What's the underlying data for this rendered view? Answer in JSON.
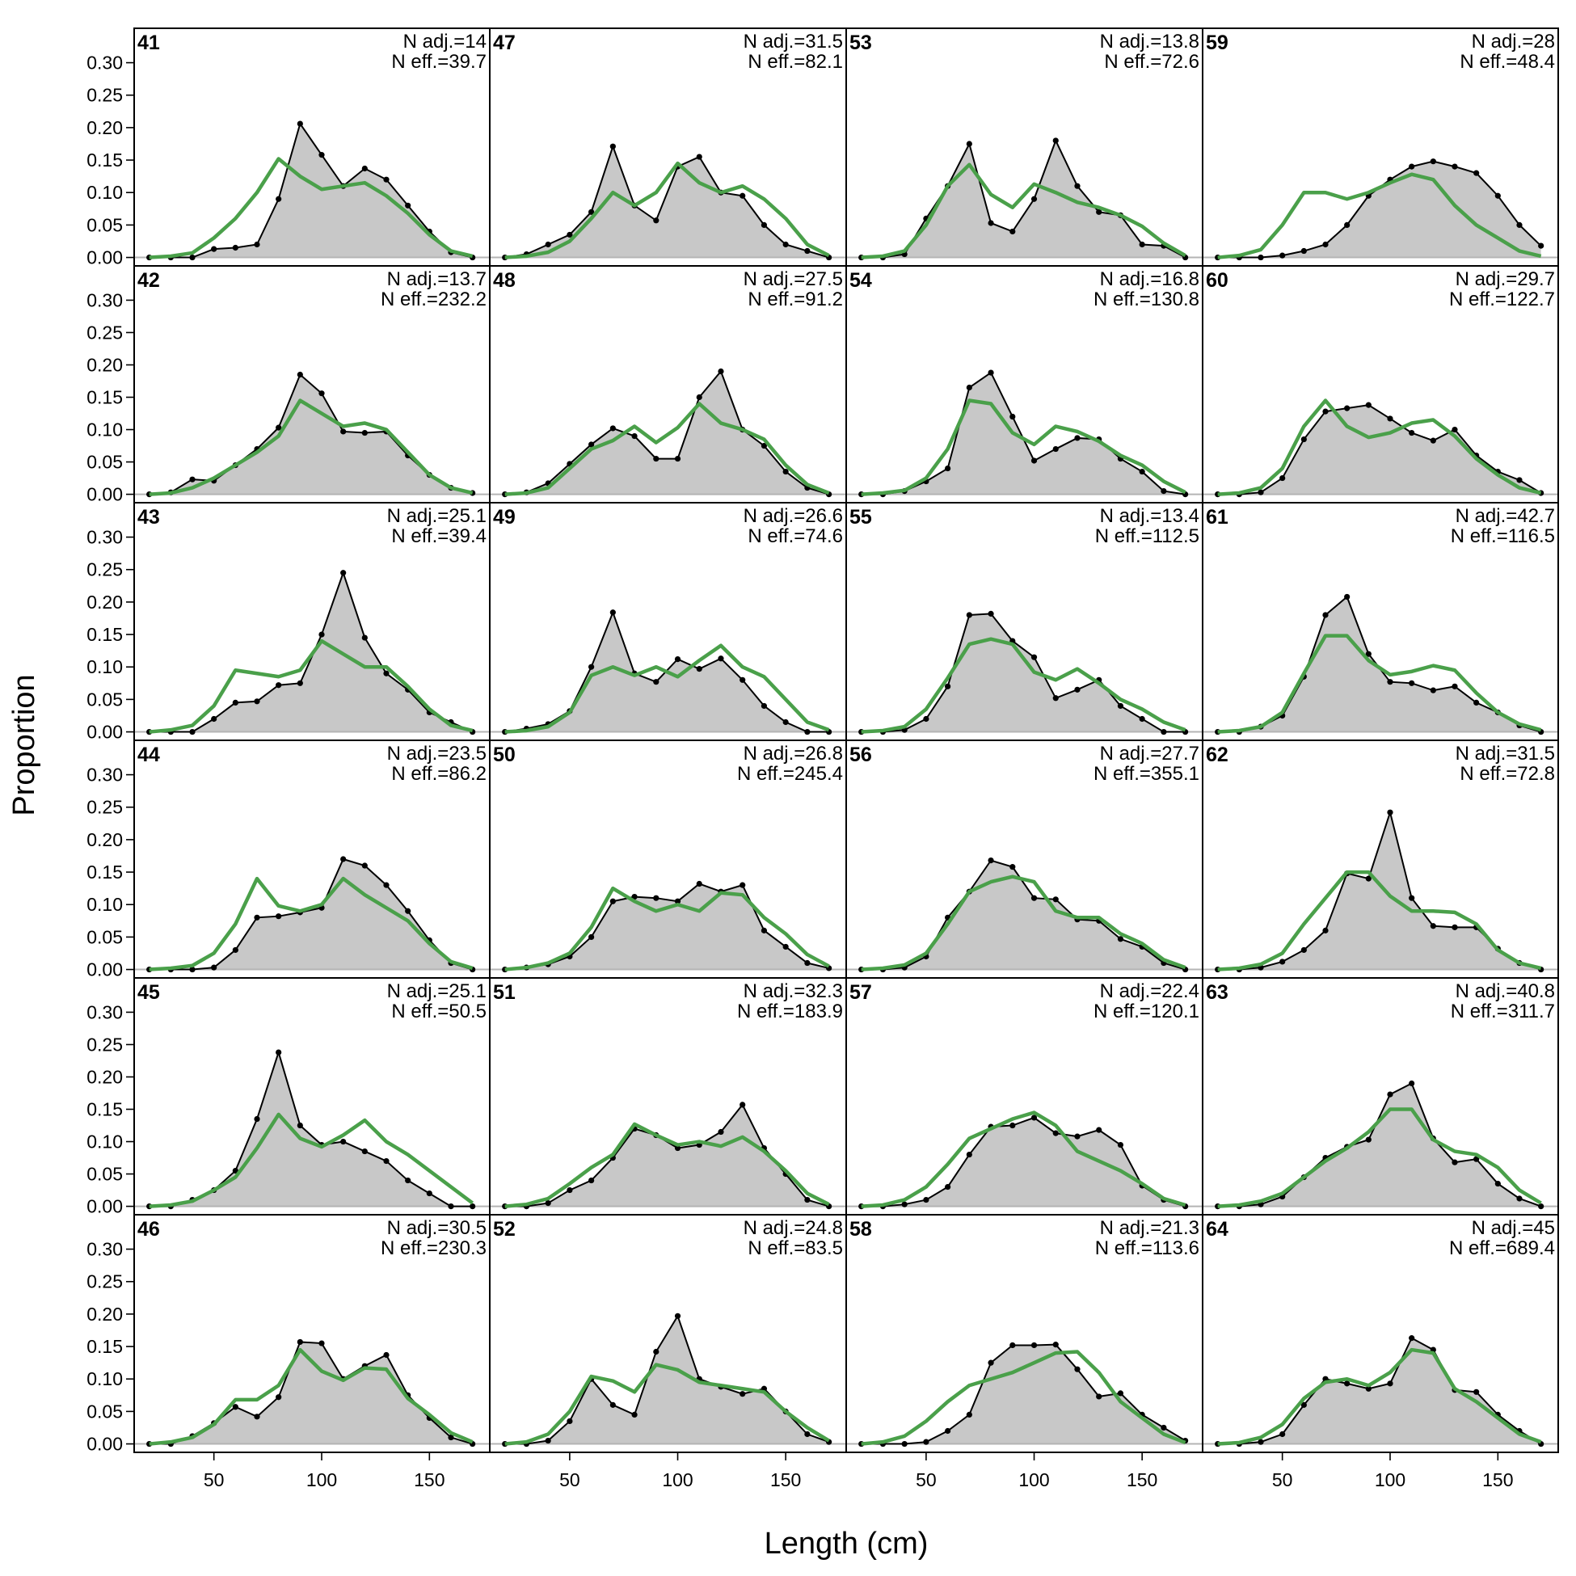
{
  "chart_data": {
    "type": "area",
    "xlabel": "Length (cm)",
    "ylabel": "Proportion",
    "xlim": [
      13,
      178
    ],
    "ylim": [
      -0.013,
      0.353
    ],
    "xticks": [
      50,
      100,
      150
    ],
    "yticks": [
      0.0,
      0.05,
      0.1,
      0.15,
      0.2,
      0.25,
      0.3
    ],
    "ytick_labels": [
      "0.00",
      "0.05",
      "0.10",
      "0.15",
      "0.20",
      "0.25",
      "0.30"
    ],
    "grid": false,
    "colors": {
      "observed_fill": "#c8c8c8",
      "observed_line": "#000000",
      "expected_line": "#4aa04a",
      "baseline": "#b4b4b4"
    },
    "x": [
      20,
      30,
      40,
      50,
      60,
      70,
      80,
      90,
      100,
      110,
      120,
      130,
      140,
      150,
      160,
      170
    ],
    "panels": [
      {
        "id": "41",
        "n_adj": "N adj.=14",
        "n_eff": "N eff.=39.7",
        "observed": [
          0,
          0,
          0,
          0.013,
          0.015,
          0.02,
          0.09,
          0.206,
          0.158,
          0.11,
          0.137,
          0.12,
          0.08,
          0.04,
          0.008,
          0
        ],
        "expected": [
          0,
          0.002,
          0.007,
          0.03,
          0.06,
          0.1,
          0.152,
          0.125,
          0.105,
          0.11,
          0.115,
          0.095,
          0.068,
          0.035,
          0.01,
          0.002
        ]
      },
      {
        "id": "42",
        "n_adj": "N adj.=13.7",
        "n_eff": "N eff.=232.2",
        "observed": [
          0,
          0.003,
          0.023,
          0.021,
          0.045,
          0.07,
          0.103,
          0.185,
          0.156,
          0.097,
          0.095,
          0.097,
          0.06,
          0.03,
          0.01,
          0.002
        ],
        "expected": [
          0,
          0.002,
          0.01,
          0.025,
          0.045,
          0.065,
          0.09,
          0.145,
          0.125,
          0.105,
          0.11,
          0.1,
          0.065,
          0.03,
          0.01,
          0.002
        ]
      },
      {
        "id": "43",
        "n_adj": "N adj.=25.1",
        "n_eff": "N eff.=39.4",
        "observed": [
          0,
          0,
          0,
          0.02,
          0.045,
          0.047,
          0.072,
          0.075,
          0.15,
          0.245,
          0.145,
          0.09,
          0.065,
          0.03,
          0.015,
          0
        ],
        "expected": [
          0,
          0.003,
          0.01,
          0.04,
          0.095,
          0.09,
          0.085,
          0.095,
          0.14,
          0.12,
          0.1,
          0.1,
          0.07,
          0.035,
          0.01,
          0.002
        ]
      },
      {
        "id": "44",
        "n_adj": "N adj.=23.5",
        "n_eff": "N eff.=86.2",
        "observed": [
          0,
          0,
          0,
          0.003,
          0.03,
          0.08,
          0.082,
          0.088,
          0.095,
          0.17,
          0.16,
          0.13,
          0.09,
          0.045,
          0.01,
          0
        ],
        "expected": [
          0,
          0.002,
          0.006,
          0.025,
          0.07,
          0.14,
          0.098,
          0.09,
          0.1,
          0.14,
          0.115,
          0.095,
          0.075,
          0.04,
          0.012,
          0.002
        ]
      },
      {
        "id": "45",
        "n_adj": "N adj.=25.1",
        "n_eff": "N eff.=50.5",
        "observed": [
          0,
          0,
          0.01,
          0.025,
          0.055,
          0.135,
          0.238,
          0.125,
          0.095,
          0.1,
          0.085,
          0.07,
          0.04,
          0.02,
          0,
          0
        ],
        "expected": [
          0,
          0.002,
          0.008,
          0.025,
          0.045,
          0.09,
          0.142,
          0.105,
          0.092,
          0.11,
          0.133,
          0.1,
          0.08,
          0.055,
          0.03,
          0.005
        ]
      },
      {
        "id": "46",
        "n_adj": "N adj.=30.5",
        "n_eff": "N eff.=230.3",
        "observed": [
          0,
          0,
          0.012,
          0.032,
          0.057,
          0.042,
          0.072,
          0.157,
          0.155,
          0.1,
          0.12,
          0.137,
          0.075,
          0.04,
          0.01,
          0
        ],
        "expected": [
          0,
          0.003,
          0.01,
          0.03,
          0.068,
          0.068,
          0.09,
          0.145,
          0.112,
          0.098,
          0.117,
          0.115,
          0.07,
          0.045,
          0.017,
          0.003
        ]
      },
      {
        "id": "47",
        "n_adj": "N adj.=31.5",
        "n_eff": "N eff.=82.1",
        "observed": [
          0,
          0.005,
          0.02,
          0.035,
          0.07,
          0.171,
          0.08,
          0.057,
          0.14,
          0.155,
          0.1,
          0.095,
          0.05,
          0.02,
          0.01,
          0
        ],
        "expected": [
          0,
          0.002,
          0.008,
          0.025,
          0.06,
          0.1,
          0.08,
          0.1,
          0.145,
          0.115,
          0.1,
          0.11,
          0.09,
          0.06,
          0.02,
          0.003
        ]
      },
      {
        "id": "48",
        "n_adj": "N adj.=27.5",
        "n_eff": "N eff.=91.2",
        "observed": [
          0,
          0.003,
          0.017,
          0.047,
          0.077,
          0.102,
          0.09,
          0.055,
          0.055,
          0.15,
          0.19,
          0.1,
          0.075,
          0.035,
          0.01,
          0
        ],
        "expected": [
          0,
          0.002,
          0.01,
          0.04,
          0.07,
          0.083,
          0.105,
          0.08,
          0.103,
          0.14,
          0.11,
          0.1,
          0.085,
          0.045,
          0.015,
          0.002
        ]
      },
      {
        "id": "49",
        "n_adj": "N adj.=26.6",
        "n_eff": "N eff.=74.6",
        "observed": [
          0,
          0.005,
          0.012,
          0.032,
          0.1,
          0.184,
          0.09,
          0.077,
          0.112,
          0.097,
          0.113,
          0.08,
          0.04,
          0.015,
          0,
          0
        ],
        "expected": [
          0,
          0.002,
          0.008,
          0.03,
          0.087,
          0.1,
          0.087,
          0.1,
          0.085,
          0.11,
          0.133,
          0.1,
          0.085,
          0.05,
          0.015,
          0.003
        ]
      },
      {
        "id": "50",
        "n_adj": "N adj.=26.8",
        "n_eff": "N eff.=245.4",
        "observed": [
          0,
          0.003,
          0.008,
          0.02,
          0.05,
          0.105,
          0.112,
          0.11,
          0.105,
          0.132,
          0.12,
          0.13,
          0.06,
          0.035,
          0.01,
          0.002
        ],
        "expected": [
          0,
          0.003,
          0.01,
          0.025,
          0.065,
          0.125,
          0.105,
          0.09,
          0.1,
          0.09,
          0.118,
          0.115,
          0.08,
          0.055,
          0.023,
          0.005
        ]
      },
      {
        "id": "51",
        "n_adj": "N adj.=32.3",
        "n_eff": "N eff.=183.9",
        "observed": [
          0,
          0,
          0.005,
          0.025,
          0.04,
          0.075,
          0.12,
          0.11,
          0.09,
          0.095,
          0.115,
          0.157,
          0.09,
          0.05,
          0.01,
          0
        ],
        "expected": [
          0,
          0.003,
          0.012,
          0.035,
          0.06,
          0.08,
          0.127,
          0.11,
          0.095,
          0.1,
          0.093,
          0.107,
          0.085,
          0.055,
          0.02,
          0.003
        ]
      },
      {
        "id": "52",
        "n_adj": "N adj.=24.8",
        "n_eff": "N eff.=83.5",
        "observed": [
          0,
          0,
          0.005,
          0.035,
          0.1,
          0.06,
          0.045,
          0.142,
          0.197,
          0.1,
          0.088,
          0.077,
          0.085,
          0.05,
          0.015,
          0.003
        ],
        "expected": [
          0,
          0.003,
          0.015,
          0.05,
          0.104,
          0.097,
          0.08,
          0.122,
          0.114,
          0.095,
          0.09,
          0.085,
          0.08,
          0.05,
          0.025,
          0.005
        ]
      },
      {
        "id": "53",
        "n_adj": "N adj.=13.8",
        "n_eff": "N eff.=72.6",
        "observed": [
          0,
          0,
          0.005,
          0.06,
          0.11,
          0.175,
          0.053,
          0.04,
          0.09,
          0.18,
          0.11,
          0.07,
          0.065,
          0.02,
          0.018,
          0
        ],
        "expected": [
          0,
          0.002,
          0.01,
          0.05,
          0.11,
          0.143,
          0.097,
          0.077,
          0.113,
          0.1,
          0.085,
          0.077,
          0.065,
          0.048,
          0.022,
          0.003
        ]
      },
      {
        "id": "54",
        "n_adj": "N adj.=16.8",
        "n_eff": "N eff.=130.8",
        "observed": [
          0,
          0,
          0.005,
          0.02,
          0.04,
          0.165,
          0.188,
          0.12,
          0.052,
          0.07,
          0.087,
          0.085,
          0.055,
          0.035,
          0.005,
          0
        ],
        "expected": [
          0,
          0.002,
          0.006,
          0.025,
          0.07,
          0.145,
          0.14,
          0.095,
          0.077,
          0.105,
          0.097,
          0.082,
          0.06,
          0.045,
          0.02,
          0.003
        ]
      },
      {
        "id": "55",
        "n_adj": "N adj.=13.4",
        "n_eff": "N eff.=112.5",
        "observed": [
          0,
          0,
          0.003,
          0.02,
          0.07,
          0.18,
          0.182,
          0.14,
          0.115,
          0.052,
          0.065,
          0.08,
          0.04,
          0.02,
          0,
          0
        ],
        "expected": [
          0,
          0.002,
          0.008,
          0.035,
          0.083,
          0.135,
          0.143,
          0.135,
          0.092,
          0.08,
          0.097,
          0.075,
          0.05,
          0.035,
          0.015,
          0.003
        ]
      },
      {
        "id": "56",
        "n_adj": "N adj.=27.7",
        "n_eff": "N eff.=355.1",
        "observed": [
          0,
          0,
          0.003,
          0.02,
          0.08,
          0.12,
          0.168,
          0.158,
          0.11,
          0.108,
          0.077,
          0.075,
          0.047,
          0.035,
          0.01,
          0
        ],
        "expected": [
          0,
          0.002,
          0.007,
          0.025,
          0.07,
          0.12,
          0.135,
          0.143,
          0.135,
          0.09,
          0.08,
          0.08,
          0.055,
          0.04,
          0.015,
          0.003
        ]
      },
      {
        "id": "57",
        "n_adj": "N adj.=22.4",
        "n_eff": "N eff.=120.1",
        "observed": [
          0,
          0,
          0.003,
          0.01,
          0.03,
          0.08,
          0.123,
          0.125,
          0.137,
          0.113,
          0.108,
          0.118,
          0.095,
          0.032,
          0.01,
          0
        ],
        "expected": [
          0,
          0.002,
          0.01,
          0.03,
          0.065,
          0.105,
          0.12,
          0.135,
          0.145,
          0.125,
          0.085,
          0.07,
          0.055,
          0.035,
          0.012,
          0.002
        ]
      },
      {
        "id": "58",
        "n_adj": "N adj.=21.3",
        "n_eff": "N eff.=113.6",
        "observed": [
          0,
          0,
          0,
          0.003,
          0.02,
          0.045,
          0.125,
          0.152,
          0.152,
          0.153,
          0.115,
          0.073,
          0.078,
          0.045,
          0.025,
          0.005
        ],
        "expected": [
          0,
          0.003,
          0.012,
          0.035,
          0.065,
          0.09,
          0.1,
          0.11,
          0.125,
          0.14,
          0.142,
          0.11,
          0.065,
          0.04,
          0.015,
          0.002
        ]
      },
      {
        "id": "59",
        "n_adj": "N adj.=28",
        "n_eff": "N eff.=48.4",
        "observed": [
          0,
          0,
          0,
          0.003,
          0.01,
          0.02,
          0.05,
          0.095,
          0.12,
          0.14,
          0.148,
          0.14,
          0.13,
          0.095,
          0.05,
          0.018
        ],
        "expected": [
          0,
          0.003,
          0.012,
          0.05,
          0.1,
          0.1,
          0.09,
          0.1,
          0.115,
          0.128,
          0.12,
          0.08,
          0.05,
          0.03,
          0.01,
          0.002
        ]
      },
      {
        "id": "60",
        "n_adj": "N adj.=29.7",
        "n_eff": "N eff.=122.7",
        "observed": [
          0,
          0,
          0.003,
          0.025,
          0.085,
          0.128,
          0.133,
          0.138,
          0.117,
          0.095,
          0.083,
          0.1,
          0.06,
          0.035,
          0.022,
          0.002
        ],
        "expected": [
          0,
          0.002,
          0.01,
          0.04,
          0.105,
          0.145,
          0.105,
          0.088,
          0.095,
          0.11,
          0.115,
          0.09,
          0.055,
          0.03,
          0.01,
          0.002
        ]
      },
      {
        "id": "61",
        "n_adj": "N adj.=42.7",
        "n_eff": "N eff.=116.5",
        "observed": [
          0,
          0,
          0.008,
          0.025,
          0.085,
          0.18,
          0.208,
          0.12,
          0.077,
          0.075,
          0.064,
          0.07,
          0.045,
          0.03,
          0.01,
          0
        ],
        "expected": [
          0,
          0.002,
          0.008,
          0.03,
          0.09,
          0.148,
          0.148,
          0.11,
          0.088,
          0.093,
          0.102,
          0.095,
          0.06,
          0.03,
          0.012,
          0.003
        ]
      },
      {
        "id": "62",
        "n_adj": "N adj.=31.5",
        "n_eff": "N eff.=72.8",
        "observed": [
          0,
          0,
          0.003,
          0.012,
          0.03,
          0.06,
          0.148,
          0.14,
          0.242,
          0.11,
          0.067,
          0.065,
          0.065,
          0.032,
          0.01,
          0
        ],
        "expected": [
          0,
          0.002,
          0.008,
          0.025,
          0.07,
          0.11,
          0.15,
          0.15,
          0.113,
          0.09,
          0.09,
          0.088,
          0.07,
          0.03,
          0.01,
          0.002
        ]
      },
      {
        "id": "63",
        "n_adj": "N adj.=40.8",
        "n_eff": "N eff.=311.7",
        "observed": [
          0,
          0,
          0.003,
          0.015,
          0.045,
          0.075,
          0.092,
          0.103,
          0.173,
          0.19,
          0.105,
          0.068,
          0.073,
          0.035,
          0.012,
          0
        ],
        "expected": [
          0,
          0.002,
          0.008,
          0.02,
          0.045,
          0.07,
          0.09,
          0.115,
          0.15,
          0.15,
          0.103,
          0.085,
          0.08,
          0.06,
          0.025,
          0.005
        ]
      },
      {
        "id": "64",
        "n_adj": "N adj.=45",
        "n_eff": "N eff.=689.4",
        "observed": [
          0,
          0,
          0.003,
          0.015,
          0.06,
          0.1,
          0.093,
          0.085,
          0.093,
          0.163,
          0.145,
          0.083,
          0.08,
          0.045,
          0.02,
          0
        ],
        "expected": [
          0,
          0.002,
          0.01,
          0.03,
          0.07,
          0.095,
          0.1,
          0.09,
          0.11,
          0.145,
          0.14,
          0.085,
          0.065,
          0.04,
          0.015,
          0.003
        ]
      }
    ]
  }
}
